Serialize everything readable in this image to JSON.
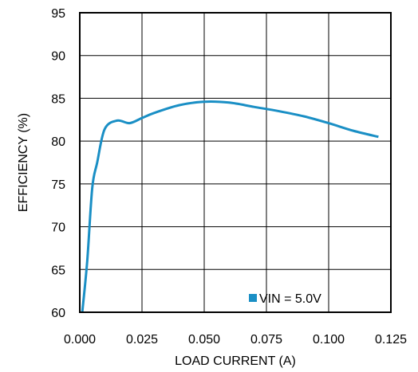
{
  "chart_data": {
    "type": "line",
    "title": "",
    "xlabel": "LOAD CURRENT (A)",
    "ylabel": "EFFICIENCY (%)",
    "xlim": [
      0,
      0.125
    ],
    "ylim": [
      60,
      95
    ],
    "x_ticks": [
      0,
      0.025,
      0.05,
      0.075,
      0.1,
      0.125
    ],
    "x_tick_labels": [
      "0.000",
      "0.025",
      "0.050",
      "0.075",
      "0.100",
      "0.125"
    ],
    "y_ticks": [
      60,
      65,
      70,
      75,
      80,
      85,
      90,
      95
    ],
    "y_tick_labels": [
      "60",
      "65",
      "70",
      "75",
      "80",
      "85",
      "90",
      "95"
    ],
    "grid": true,
    "legend_position": "bottom-right",
    "series": [
      {
        "name": "VIN = 5.0V",
        "color": "#1a8fc5",
        "x": [
          0.001,
          0.003,
          0.005,
          0.007,
          0.01,
          0.015,
          0.02,
          0.025,
          0.03,
          0.04,
          0.05,
          0.06,
          0.07,
          0.08,
          0.09,
          0.1,
          0.11,
          0.12
        ],
        "y": [
          60.0,
          66.0,
          74.5,
          77.5,
          81.4,
          82.4,
          82.1,
          82.7,
          83.3,
          84.2,
          84.6,
          84.5,
          84.0,
          83.5,
          82.9,
          82.1,
          81.2,
          80.5
        ]
      }
    ]
  }
}
